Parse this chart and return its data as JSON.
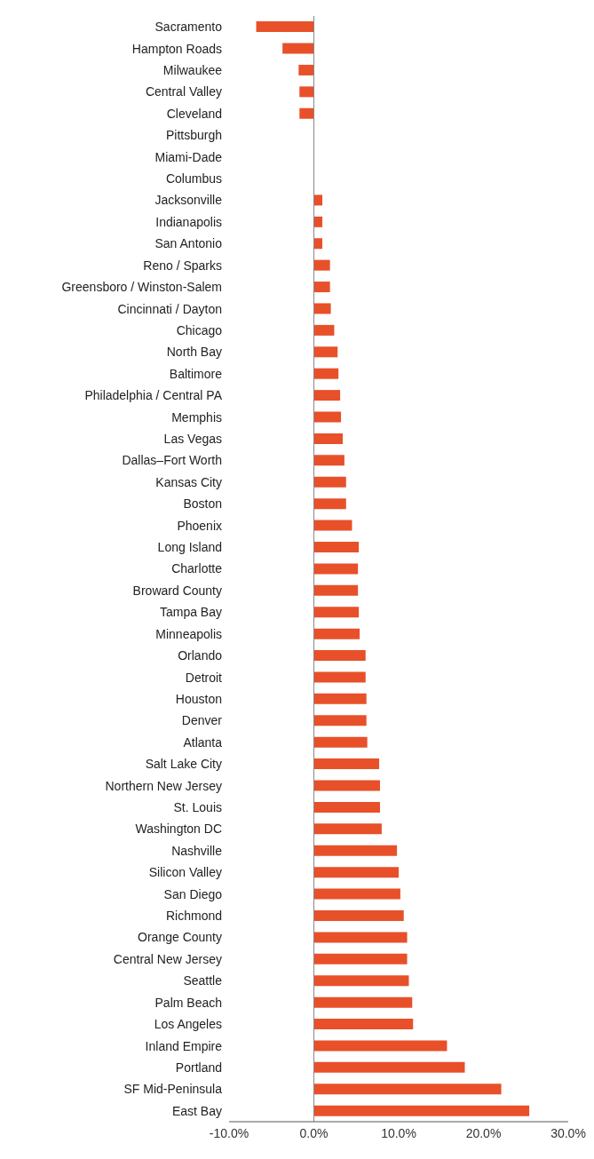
{
  "chart_data": {
    "type": "bar",
    "orientation": "horizontal",
    "categories": [
      "Sacramento",
      "Hampton Roads",
      "Milwaukee",
      "Central Valley",
      "Cleveland",
      "Pittsburgh",
      "Miami-Dade",
      "Columbus",
      "Jacksonville",
      "Indianapolis",
      "San Antonio",
      "Reno / Sparks",
      "Greensboro / Winston-Salem",
      "Cincinnati / Dayton",
      "Chicago",
      "North Bay",
      "Baltimore",
      "Philadelphia / Central PA",
      "Memphis",
      "Las Vegas",
      "Dallas–Fort Worth",
      "Kansas City",
      "Boston",
      "Phoenix",
      "Long Island",
      "Charlotte",
      "Broward County",
      "Tampa Bay",
      "Minneapolis",
      "Orlando",
      "Detroit",
      "Houston",
      "Denver",
      "Atlanta",
      "Salt Lake City",
      "Northern New Jersey",
      "St. Louis",
      "Washington DC",
      "Nashville",
      "Silicon Valley",
      "San Diego",
      "Richmond",
      "Orange County",
      "Central New Jersey",
      "Seattle",
      "Palm Beach",
      "Los Angeles",
      "Inland Empire",
      "Portland",
      "SF Mid-Peninsula",
      "East Bay"
    ],
    "values": [
      -6.8,
      -3.7,
      -1.8,
      -1.7,
      -1.7,
      0,
      0,
      0,
      1.0,
      1.0,
      1.0,
      1.9,
      1.9,
      2.0,
      2.4,
      2.8,
      2.9,
      3.1,
      3.2,
      3.4,
      3.6,
      3.8,
      3.8,
      4.5,
      5.3,
      5.2,
      5.2,
      5.3,
      5.4,
      6.1,
      6.1,
      6.2,
      6.2,
      6.3,
      7.7,
      7.8,
      7.8,
      8.0,
      9.8,
      10.0,
      10.2,
      10.6,
      11.0,
      11.0,
      11.2,
      11.6,
      11.7,
      15.7,
      17.8,
      22.1,
      25.4
    ],
    "color": "#e8502a",
    "xlim": [
      -10,
      30
    ],
    "xticks": [
      {
        "value": -10,
        "label": "-10.0%"
      },
      {
        "value": 0,
        "label": "0.0%"
      },
      {
        "value": 10,
        "label": "10.0%"
      },
      {
        "value": 20,
        "label": "20.0%"
      },
      {
        "value": 30,
        "label": "30.0%"
      }
    ],
    "ref_lines": [
      {
        "axis": "x",
        "value": 0,
        "color": "#888888"
      }
    ]
  }
}
